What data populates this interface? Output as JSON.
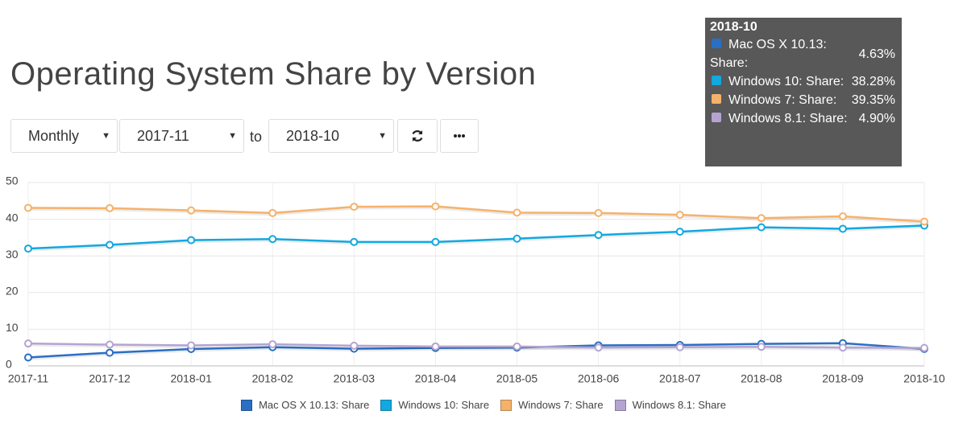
{
  "title": "Operating System Share by Version",
  "controls": {
    "interval": "Monthly",
    "from": "2017-11",
    "to_label": "to",
    "to": "2018-10"
  },
  "tooltip": {
    "title": "2018-10",
    "items": [
      {
        "label": "Mac OS X 10.13: Share:",
        "value": "4.63%"
      },
      {
        "label": "Windows 10: Share:",
        "value": "38.28%"
      },
      {
        "label": "Windows 7: Share:",
        "value": "39.35%"
      },
      {
        "label": "Windows 8.1: Share:",
        "value": "4.90%"
      }
    ]
  },
  "chart_data": {
    "type": "line",
    "categories": [
      "2017-11",
      "2017-12",
      "2018-01",
      "2018-02",
      "2018-03",
      "2018-04",
      "2018-05",
      "2018-06",
      "2018-07",
      "2018-08",
      "2018-09",
      "2018-10"
    ],
    "series": [
      {
        "name": "Mac OS X 10.13: Share",
        "color": "#2a6fc4",
        "values": [
          2.3,
          3.6,
          4.6,
          5.1,
          4.7,
          4.9,
          5.0,
          5.6,
          5.7,
          6.0,
          6.2,
          4.63
        ]
      },
      {
        "name": "Windows 10: Share",
        "color": "#12a8e0",
        "values": [
          32.0,
          33.0,
          34.3,
          34.6,
          33.8,
          33.8,
          34.7,
          35.7,
          36.6,
          37.8,
          37.4,
          38.28
        ]
      },
      {
        "name": "Windows 7: Share",
        "color": "#f5b26b",
        "values": [
          43.1,
          43.0,
          42.4,
          41.7,
          43.4,
          43.5,
          41.8,
          41.7,
          41.2,
          40.3,
          40.8,
          39.35
        ]
      },
      {
        "name": "Windows 8.1: Share",
        "color": "#b5a4d1",
        "values": [
          6.1,
          5.8,
          5.6,
          5.9,
          5.5,
          5.3,
          5.3,
          5.0,
          5.1,
          5.2,
          5.0,
          4.9
        ]
      }
    ],
    "ylim": [
      0,
      50
    ],
    "yticks": [
      0,
      10,
      20,
      30,
      40,
      50
    ],
    "grid": true
  }
}
